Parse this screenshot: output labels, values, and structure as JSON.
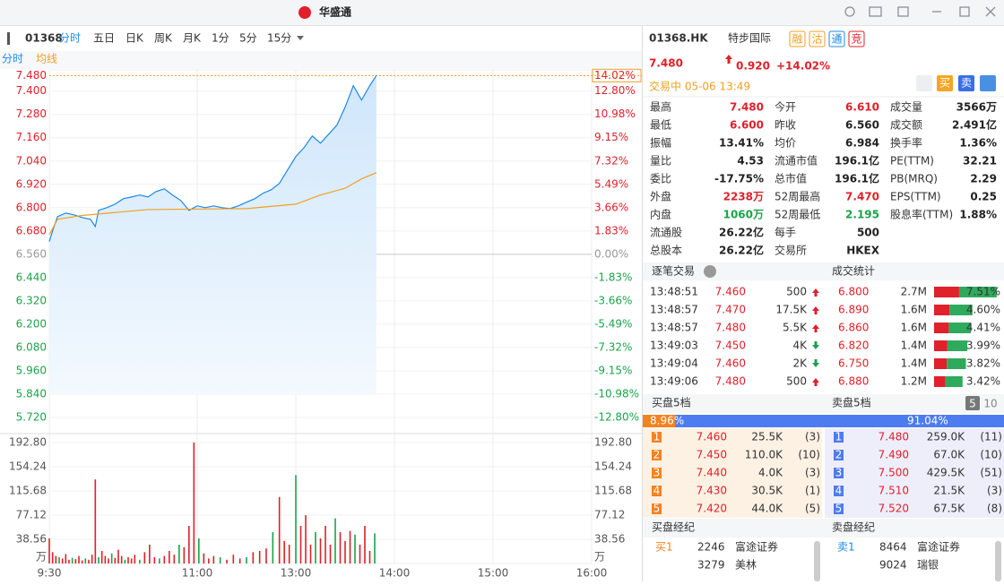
{
  "app": {
    "title": "华盛通"
  },
  "toolbar": {
    "code": "01368",
    "tabs": [
      "分时",
      "五日",
      "日K",
      "周K",
      "月K",
      "1分",
      "5分",
      "15分"
    ],
    "subtabs": [
      "分时",
      "均线"
    ]
  },
  "chart": {
    "xlim": [
      0,
      330
    ],
    "xticks": [
      {
        "value": 0,
        "label": "9:30"
      },
      {
        "value": 90,
        "label": "11:00"
      },
      {
        "value": 150,
        "label": "13:00"
      },
      {
        "value": 210,
        "label": "14:00"
      },
      {
        "value": 270,
        "label": "15:00"
      },
      {
        "value": 330,
        "label": "16:00"
      }
    ],
    "ylim": [
      5.66,
      7.5
    ],
    "yticks": [
      {
        "value": 7.48,
        "label": "7.480"
      },
      {
        "value": 7.4,
        "label": "7.400"
      },
      {
        "value": 7.28,
        "label": "7.280"
      },
      {
        "value": 7.16,
        "label": "7.160"
      },
      {
        "value": 7.04,
        "label": "7.040"
      },
      {
        "value": 6.92,
        "label": "6.920"
      },
      {
        "value": 6.8,
        "label": "6.800"
      },
      {
        "value": 6.68,
        "label": "6.680"
      },
      {
        "value": 6.56,
        "label": "6.560"
      },
      {
        "value": 6.44,
        "label": "6.440"
      },
      {
        "value": 6.32,
        "label": "6.320"
      },
      {
        "value": 6.2,
        "label": "6.200"
      },
      {
        "value": 6.08,
        "label": "6.080"
      },
      {
        "value": 5.96,
        "label": "5.960"
      },
      {
        "value": 5.84,
        "label": "5.840"
      },
      {
        "value": 5.72,
        "label": "5.720"
      }
    ],
    "pct_labels": [
      "14.02%",
      "12.80%",
      "10.98%",
      "9.15%",
      "7.32%",
      "5.49%",
      "3.66%",
      "1.83%",
      "0.00%",
      "-1.83%",
      "-3.66%",
      "-5.49%",
      "-7.32%",
      "-9.15%",
      "-10.98%",
      "-12.80%"
    ],
    "price": {
      "color": "#1e88e5",
      "x": [
        0,
        2,
        5,
        10,
        15,
        20,
        25,
        28,
        30,
        35,
        40,
        45,
        50,
        55,
        60,
        65,
        70,
        75,
        80,
        85,
        90,
        95,
        100,
        105,
        110,
        115,
        120,
        125,
        130,
        135,
        140,
        145,
        150,
        155,
        160,
        165,
        170,
        175,
        180,
        185,
        190,
        195,
        199
      ],
      "values": [
        6.625,
        6.68,
        6.754,
        6.772,
        6.763,
        6.749,
        6.74,
        6.703,
        6.786,
        6.8,
        6.818,
        6.846,
        6.855,
        6.865,
        6.855,
        6.883,
        6.897,
        6.865,
        6.837,
        6.786,
        6.809,
        6.8,
        6.809,
        6.8,
        6.795,
        6.809,
        6.828,
        6.846,
        6.874,
        6.892,
        6.925,
        6.994,
        7.063,
        7.109,
        7.169,
        7.132,
        7.178,
        7.225,
        7.317,
        7.428,
        7.354,
        7.428,
        7.48
      ]
    },
    "avg": {
      "color": "#f0a020",
      "x": [
        0,
        5,
        20,
        60,
        120,
        150,
        165,
        180,
        190,
        199
      ],
      "values": [
        6.66,
        6.74,
        6.76,
        6.79,
        6.795,
        6.818,
        6.865,
        6.9,
        6.948,
        6.98
      ]
    },
    "volume": {
      "ylim": [
        0,
        200
      ],
      "unit": "万",
      "yticks": [
        {
          "value": 192.8,
          "label": "192.80"
        },
        154.24,
        115.68,
        77.12,
        38.56
      ],
      "x": [
        0,
        2,
        4,
        6,
        8,
        10,
        12,
        14,
        16,
        18,
        20,
        22,
        24,
        26,
        28,
        30,
        32,
        34,
        36,
        38,
        40,
        42,
        44,
        46,
        48,
        50,
        52,
        55,
        58,
        61,
        64,
        67,
        70,
        73,
        76,
        79,
        82,
        85,
        88,
        91,
        94,
        97,
        100,
        104,
        108,
        112,
        116,
        120,
        124,
        128,
        132,
        136,
        140,
        143,
        146,
        150,
        153,
        156,
        159,
        162,
        165,
        168,
        171,
        174,
        177,
        180,
        183,
        186,
        189,
        192,
        195,
        198
      ],
      "values": [
        40,
        18,
        12,
        10,
        8,
        15,
        6,
        9,
        7,
        12,
        5,
        8,
        6,
        14,
        134,
        10,
        20,
        12,
        8,
        16,
        9,
        22,
        12,
        6,
        10,
        8,
        14,
        6,
        18,
        30,
        10,
        8,
        12,
        20,
        14,
        30,
        26,
        60,
        193,
        40,
        16,
        8,
        12,
        10,
        6,
        14,
        8,
        10,
        18,
        20,
        24,
        50,
        106,
        36,
        30,
        141,
        60,
        77,
        30,
        50,
        40,
        60,
        30,
        72,
        50,
        36,
        52,
        46,
        30,
        60,
        20,
        48
      ]
    }
  },
  "quote": {
    "symbol": "01368.HK",
    "name": "特步国际",
    "badges": [
      "融",
      "沽",
      "通",
      "竞"
    ],
    "price": "7.480",
    "change": "0.920",
    "change_pct": "+14.02%",
    "status": "交易中 05-06 13:49",
    "buy": "买",
    "sell": "卖",
    "stats": [
      [
        {
          "label": "最高",
          "value": "7.480",
          "color": "#e0202a"
        },
        {
          "label": "最低",
          "value": "6.600",
          "color": "#e0202a"
        },
        {
          "label": "振幅",
          "value": "13.41%"
        },
        {
          "label": "量比",
          "value": "4.53"
        },
        {
          "label": "委比",
          "value": "-17.75%"
        },
        {
          "label": "外盘",
          "value": "2238万",
          "color": "#e0202a"
        },
        {
          "label": "内盘",
          "value": "1060万",
          "color": "#1aa34a"
        },
        {
          "label": "流通股",
          "value": "26.22亿"
        },
        {
          "label": "总股本",
          "value": "26.22亿"
        }
      ],
      [
        {
          "label": "今开",
          "value": "6.610",
          "color": "#e0202a"
        },
        {
          "label": "昨收",
          "value": "6.560"
        },
        {
          "label": "均价",
          "value": "6.984"
        },
        {
          "label": "流通市值",
          "value": "196.1亿"
        },
        {
          "label": "总市值",
          "value": "196.1亿"
        },
        {
          "label": "52周最高",
          "value": "7.470",
          "color": "#e0202a"
        },
        {
          "label": "52周最低",
          "value": "2.195",
          "color": "#1aa34a"
        },
        {
          "label": "每手",
          "value": "500"
        },
        {
          "label": "交易所",
          "value": "HKEX"
        }
      ],
      [
        {
          "label": "成交量",
          "value": "3566万"
        },
        {
          "label": "成交额",
          "value": "2.491亿"
        },
        {
          "label": "换手率",
          "value": "1.36%"
        },
        {
          "label": "PE(TTM)",
          "value": "32.21"
        },
        {
          "label": "PB(MRQ)",
          "value": "2.29"
        },
        {
          "label": "EPS(TTM)",
          "value": "0.25"
        },
        {
          "label": "股息率(TTM)",
          "value": "1.88%"
        }
      ]
    ]
  },
  "trades": {
    "title": "逐笔交易",
    "rows": [
      {
        "time": "13:48:51",
        "price": "7.460",
        "vol": "500",
        "dir": "up"
      },
      {
        "time": "13:48:57",
        "price": "7.470",
        "vol": "17.5K",
        "dir": "up"
      },
      {
        "time": "13:48:57",
        "price": "7.480",
        "vol": "5.5K",
        "dir": "up"
      },
      {
        "time": "13:49:03",
        "price": "7.450",
        "vol": "4K",
        "dir": "down"
      },
      {
        "time": "13:49:04",
        "price": "7.460",
        "vol": "2K",
        "dir": "down"
      },
      {
        "time": "13:49:06",
        "price": "7.480",
        "vol": "500",
        "dir": "up"
      }
    ]
  },
  "volume_stats": {
    "title": "成交统计",
    "rows": [
      {
        "price": "6.800",
        "vol": "2.7M",
        "pct": {
          "value": 7.51,
          "label": "7.51%"
        }
      },
      {
        "price": "6.890",
        "vol": "1.6M",
        "pct": {
          "value": 4.6,
          "label": "4.60%"
        }
      },
      {
        "price": "6.860",
        "vol": "1.6M",
        "pct": {
          "value": 4.41,
          "label": "4.41%"
        }
      },
      {
        "price": "6.820",
        "vol": "1.4M",
        "pct": {
          "value": 3.99,
          "label": "3.99%"
        }
      },
      {
        "price": "6.750",
        "vol": "1.4M",
        "pct": {
          "value": 3.82,
          "label": "3.82%"
        }
      },
      {
        "price": "6.880",
        "vol": "1.2M",
        "pct": {
          "value": 3.42,
          "label": "3.42%"
        }
      }
    ]
  },
  "order_book": {
    "bid_title": "买盘5档",
    "ask_title": "卖盘5档",
    "depth_tabs": [
      "5",
      "10"
    ],
    "bid_ratio": {
      "value": 8.96,
      "label": "8.96%"
    },
    "ask_ratio": {
      "value": 91.04,
      "label": "91.04%"
    },
    "bids": [
      [
        "1",
        "7.460",
        "25.5K",
        "(3)"
      ],
      [
        "2",
        "7.450",
        "110.0K",
        "(10)"
      ],
      [
        "3",
        "7.440",
        "4.0K",
        "(3)"
      ],
      [
        "4",
        "7.430",
        "30.5K",
        "(1)"
      ],
      [
        "5",
        "7.420",
        "44.0K",
        "(5)"
      ]
    ],
    "asks": [
      [
        "1",
        "7.480",
        "259.0K",
        "(11)"
      ],
      [
        "2",
        "7.490",
        "67.0K",
        "(10)"
      ],
      [
        "3",
        "7.500",
        "429.5K",
        "(51)"
      ],
      [
        "4",
        "7.510",
        "21.5K",
        "(3)"
      ],
      [
        "5",
        "7.520",
        "67.5K",
        "(8)"
      ]
    ]
  },
  "brokers": {
    "bid_title": "买盘经纪",
    "ask_title": "卖盘经纪",
    "bids": [
      [
        "买1",
        "2246",
        "富途证券"
      ],
      [
        "",
        "3279",
        "美林"
      ]
    ],
    "asks": [
      [
        "卖1",
        "8464",
        "富途证券"
      ],
      [
        "",
        "9024",
        "瑞银"
      ]
    ]
  }
}
